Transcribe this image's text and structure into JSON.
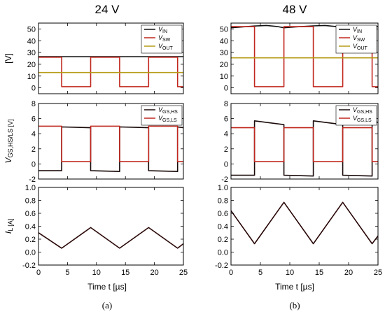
{
  "titles": {
    "left": "24 V",
    "right": "48 V"
  },
  "captions": {
    "left": "(a)",
    "right": "(b)"
  },
  "xlabel": "Time t [µs]",
  "colors": {
    "in": "#111111",
    "sw": "#c0271e",
    "out": "#b59c17",
    "hs": "#1a0a0a",
    "ls": "#c0271e",
    "il": "#2a0808"
  },
  "chart_data": [
    {
      "type": "line",
      "panel": "a-voltage",
      "column": "left",
      "row": 0,
      "ylabel": "[V]",
      "xlim": [
        0,
        25
      ],
      "ylim": [
        -5,
        55
      ],
      "xticks": [
        0,
        5,
        10,
        15,
        20,
        25
      ],
      "yticks": [
        0,
        10,
        20,
        30,
        40,
        50
      ],
      "legend": [
        "V_IN",
        "V_SW",
        "V_OUT"
      ],
      "legend_position": "top-right",
      "series": [
        {
          "name": "V_IN",
          "color": "#111111",
          "x": [
            0,
            25
          ],
          "y": [
            26.5,
            26.5
          ]
        },
        {
          "name": "V_SW",
          "color": "#c0271e",
          "x": [
            0,
            4,
            4,
            9,
            9,
            14,
            14,
            19,
            19,
            24,
            24,
            25
          ],
          "y": [
            26,
            26,
            1,
            1,
            26,
            26,
            1,
            1,
            26,
            26,
            1,
            1
          ]
        },
        {
          "name": "V_OUT",
          "color": "#b59c17",
          "x": [
            0,
            25
          ],
          "y": [
            13,
            13
          ]
        }
      ]
    },
    {
      "type": "line",
      "panel": "b-voltage",
      "column": "right",
      "row": 0,
      "ylabel": "",
      "xlim": [
        0,
        25
      ],
      "ylim": [
        -5,
        55
      ],
      "xticks": [
        0,
        5,
        10,
        15,
        20,
        25
      ],
      "yticks": [
        0,
        10,
        20,
        30,
        40,
        50
      ],
      "legend": [
        "V_IN",
        "V_SW",
        "V_OUT"
      ],
      "legend_position": "top-right",
      "series": [
        {
          "name": "V_IN",
          "color": "#111111",
          "x": [
            0,
            2,
            4,
            6,
            8,
            9,
            11,
            14,
            16,
            18,
            19,
            21,
            24,
            25
          ],
          "y": [
            51,
            51.8,
            52.5,
            53,
            52,
            51,
            51.8,
            52.6,
            53,
            52,
            51,
            51.8,
            52.6,
            52
          ]
        },
        {
          "name": "V_SW",
          "color": "#c0271e",
          "x": [
            0,
            4,
            4,
            9,
            9,
            14,
            14,
            19,
            19,
            24,
            24,
            25
          ],
          "y": [
            52,
            52,
            1,
            1,
            52,
            52,
            1,
            1,
            52,
            52,
            1,
            1
          ]
        },
        {
          "name": "V_OUT",
          "color": "#b59c17",
          "x": [
            0,
            25
          ],
          "y": [
            25.5,
            25.5
          ]
        }
      ]
    },
    {
      "type": "line",
      "panel": "a-gate",
      "column": "left",
      "row": 1,
      "ylabel": "V_GS,HS/LS [V]",
      "xlim": [
        0,
        25
      ],
      "ylim": [
        -2,
        8
      ],
      "xticks": [
        0,
        5,
        10,
        15,
        20,
        25
      ],
      "yticks": [
        -2,
        0,
        2,
        4,
        6,
        8
      ],
      "legend": [
        "V_GS,HS",
        "V_GS,LS"
      ],
      "legend_position": "top-right",
      "series": [
        {
          "name": "V_GS,HS",
          "color": "#1a0a0a",
          "x": [
            0,
            4,
            4,
            9,
            9,
            14,
            14,
            19,
            19,
            24,
            24,
            25
          ],
          "y": [
            -0.9,
            -0.9,
            4.9,
            4.8,
            -0.9,
            -1.0,
            4.9,
            4.8,
            -0.9,
            -1.0,
            4.9,
            4.8
          ]
        },
        {
          "name": "V_GS,LS",
          "color": "#c0271e",
          "x": [
            0,
            4,
            4,
            9,
            9,
            14,
            14,
            19,
            19,
            24,
            24,
            25
          ],
          "y": [
            5,
            5,
            0.3,
            0.3,
            5,
            5,
            0.3,
            0.3,
            5,
            5,
            0.3,
            0.3
          ]
        }
      ]
    },
    {
      "type": "line",
      "panel": "b-gate",
      "column": "right",
      "row": 1,
      "ylabel": "",
      "xlim": [
        0,
        25
      ],
      "ylim": [
        -2,
        8
      ],
      "xticks": [
        0,
        5,
        10,
        15,
        20,
        25
      ],
      "yticks": [
        -2,
        0,
        2,
        4,
        6,
        8
      ],
      "legend": [
        "V_GS,HS",
        "V_GS,LS"
      ],
      "legend_position": "top-right",
      "series": [
        {
          "name": "V_GS,HS",
          "color": "#1a0a0a",
          "x": [
            0,
            4,
            4,
            9,
            9,
            14,
            14,
            19,
            19,
            24,
            24,
            25
          ],
          "y": [
            -1.5,
            -1.5,
            5.7,
            5.2,
            -1.5,
            -1.6,
            5.7,
            5.2,
            -1.5,
            -1.6,
            5.7,
            5.5
          ]
        },
        {
          "name": "V_GS,LS",
          "color": "#c0271e",
          "x": [
            0,
            4,
            4,
            9,
            9,
            14,
            14,
            19,
            19,
            24,
            24,
            25
          ],
          "y": [
            4.8,
            4.8,
            0.3,
            0.3,
            4.8,
            4.8,
            0.3,
            0.3,
            4.8,
            4.8,
            0.3,
            0.3
          ]
        }
      ]
    },
    {
      "type": "line",
      "panel": "a-current",
      "column": "left",
      "row": 2,
      "ylabel": "I_L [A]",
      "xlim": [
        0,
        25
      ],
      "ylim": [
        -0.2,
        1.0
      ],
      "xticks": [
        0,
        5,
        10,
        15,
        20,
        25
      ],
      "yticks": [
        -0.2,
        0.0,
        0.2,
        0.4,
        0.6,
        0.8,
        1.0
      ],
      "series": [
        {
          "name": "",
          "color": "#2a0808",
          "x": [
            0,
            4,
            9,
            14,
            19,
            24,
            25
          ],
          "y": [
            0.3,
            0.06,
            0.38,
            0.06,
            0.38,
            0.06,
            0.13
          ]
        }
      ]
    },
    {
      "type": "line",
      "panel": "b-current",
      "column": "right",
      "row": 2,
      "ylabel": "",
      "xlim": [
        0,
        25
      ],
      "ylim": [
        -0.2,
        1.0
      ],
      "xticks": [
        0,
        5,
        10,
        15,
        20,
        25
      ],
      "yticks": [
        -0.2,
        0.0,
        0.2,
        0.4,
        0.6,
        0.8,
        1.0
      ],
      "series": [
        {
          "name": "",
          "color": "#2a0808",
          "x": [
            0,
            4,
            9,
            14,
            19,
            24,
            25
          ],
          "y": [
            0.64,
            0.13,
            0.77,
            0.13,
            0.77,
            0.13,
            0.25
          ]
        }
      ]
    }
  ]
}
